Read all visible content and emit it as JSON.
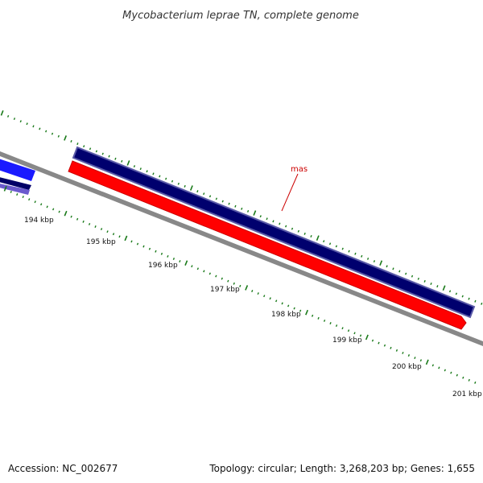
{
  "title": "Mycobacterium leprae TN, complete genome",
  "footer": {
    "accession": "Accession: NC_002677",
    "summary": "Topology: circular; Length: 3,268,203 bp; Genes: 1,655"
  },
  "scale_labels": [
    "194 kbp",
    "195 kbp",
    "196 kbp",
    "197 kbp",
    "198 kbp",
    "199 kbp",
    "200 kbp",
    "201 kbp"
  ],
  "genes": [
    {
      "name": "mas",
      "strand": "minus",
      "color": "#ff0000"
    }
  ],
  "colors": {
    "forward_track": "#00006e",
    "reverse_track": "#ff0000",
    "backbone": "#888888",
    "ticks": "#1a7a1a",
    "left_blue": "#1a1aff",
    "left_lavender": "#6a5acd"
  }
}
